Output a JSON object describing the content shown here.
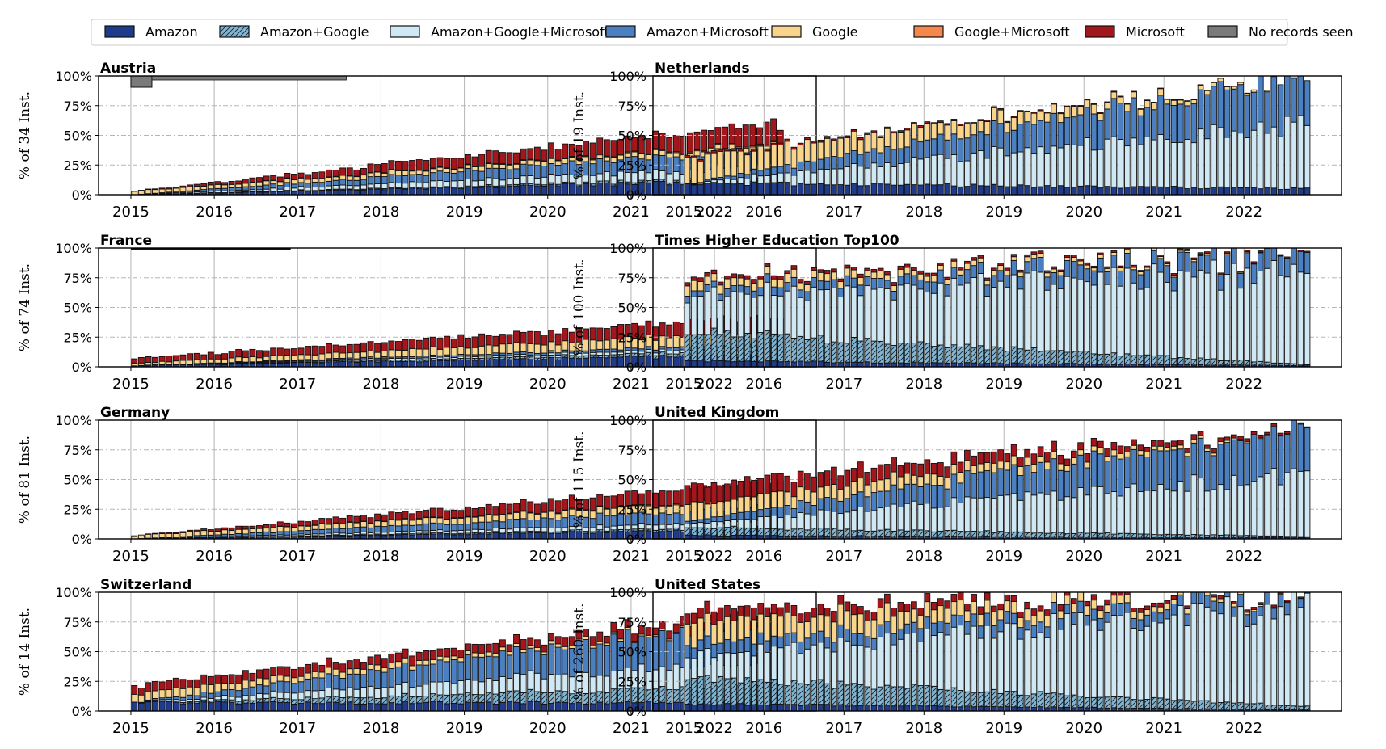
{
  "legend": {
    "placement": "top",
    "items": [
      {
        "label": "Amazon",
        "color": "#1f3b8c",
        "hatch": false
      },
      {
        "label": "Amazon+Google",
        "color": "#7fb6d6",
        "hatch": true
      },
      {
        "label": "Amazon+Google+Microsoft",
        "color": "#cfe8f3",
        "hatch": false
      },
      {
        "label": "Amazon+Microsoft",
        "color": "#4a7fc1",
        "hatch": false
      },
      {
        "label": "Google",
        "color": "#f9d48b",
        "hatch": false
      },
      {
        "label": "Google+Microsoft",
        "color": "#f4874b",
        "hatch": false
      },
      {
        "label": "Microsoft",
        "color": "#a3161b",
        "hatch": false
      },
      {
        "label": "No records seen",
        "color": "#7a7a7a",
        "hatch": false
      }
    ]
  },
  "x_ticks": [
    "2015",
    "2016",
    "2017",
    "2018",
    "2019",
    "2020",
    "2021",
    "2022"
  ],
  "y_ticks": [
    "0%",
    "25%",
    "50%",
    "75%",
    "100%"
  ],
  "chart_data": [
    {
      "type": "bar",
      "stacked": true,
      "title": "Austria",
      "ylabel": "% of 34 Inst.",
      "ylim": [
        0,
        100
      ],
      "grid": true,
      "x_range": [
        "2015-01",
        "2022-10"
      ],
      "nodata_color": "#7a7a7a",
      "nodata_level": 100,
      "nodata_end": "2017-08",
      "series": [
        {
          "name": "Amazon",
          "start": 0,
          "end": 12
        },
        {
          "name": "Amazon+Google",
          "start": 0,
          "end": 2
        },
        {
          "name": "Amazon+Google+Microsoft",
          "start": 0,
          "end": 10
        },
        {
          "name": "Amazon+Microsoft",
          "start": 0,
          "end": 15
        },
        {
          "name": "Google",
          "start": 3,
          "end": 4
        },
        {
          "name": "Google+Microsoft",
          "start": 0,
          "end": 1
        },
        {
          "name": "Microsoft",
          "start": 0,
          "end": 17
        }
      ]
    },
    {
      "type": "bar",
      "stacked": true,
      "title": "Netherlands",
      "ylabel": "% of 19 Inst.",
      "ylim": [
        0,
        100
      ],
      "grid": true,
      "x_range": [
        "2015-01",
        "2022-10"
      ],
      "series": [
        {
          "name": "Amazon",
          "start": 10,
          "end": 5
        },
        {
          "name": "Amazon+Google",
          "start": 0,
          "end": 0
        },
        {
          "name": "Amazon+Google+Microsoft",
          "start": 0,
          "end": 55
        },
        {
          "name": "Amazon+Microsoft",
          "start": 0,
          "end": 40
        },
        {
          "name": "Google",
          "start": 20,
          "end": 0
        },
        {
          "name": "Google+Microsoft",
          "start": 0,
          "end": 0
        },
        {
          "name": "Microsoft",
          "start": 2,
          "end": 0
        }
      ]
    },
    {
      "type": "bar",
      "stacked": true,
      "title": "France",
      "ylabel": "% of 74 Inst.",
      "ylim": [
        0,
        100
      ],
      "grid": true,
      "x_range": [
        "2015-01",
        "2022-10"
      ],
      "nodata_color": "#7a7a7a",
      "nodata_level": 100,
      "nodata_end": "2016-12",
      "series": [
        {
          "name": "Amazon",
          "start": 1,
          "end": 10
        },
        {
          "name": "Amazon+Google",
          "start": 0,
          "end": 3
        },
        {
          "name": "Amazon+Google+Microsoft",
          "start": 0,
          "end": 3
        },
        {
          "name": "Amazon+Microsoft",
          "start": 0,
          "end": 3
        },
        {
          "name": "Google",
          "start": 2,
          "end": 11
        },
        {
          "name": "Google+Microsoft",
          "start": 0,
          "end": 0
        },
        {
          "name": "Microsoft",
          "start": 4,
          "end": 13
        }
      ]
    },
    {
      "type": "bar",
      "stacked": true,
      "title": "Times Higher Education Top100",
      "ylabel": "% of 100 Inst.",
      "ylim": [
        0,
        100
      ],
      "grid": true,
      "x_range": [
        "2015-01",
        "2022-10"
      ],
      "series": [
        {
          "name": "Amazon",
          "start": 5,
          "end": 1
        },
        {
          "name": "Amazon+Google",
          "start": 25,
          "end": 1
        },
        {
          "name": "Amazon+Google+Microsoft",
          "start": 30,
          "end": 78
        },
        {
          "name": "Amazon+Microsoft",
          "start": 5,
          "end": 16
        },
        {
          "name": "Google",
          "start": 8,
          "end": 0
        },
        {
          "name": "Google+Microsoft",
          "start": 0,
          "end": 0
        },
        {
          "name": "Microsoft",
          "start": 3,
          "end": 1
        }
      ]
    },
    {
      "type": "bar",
      "stacked": true,
      "title": "Germany",
      "ylabel": "% of 81 Inst.",
      "ylim": [
        0,
        100
      ],
      "grid": true,
      "x_range": [
        "2015-01",
        "2022-10"
      ],
      "series": [
        {
          "name": "Amazon",
          "start": 0,
          "end": 8
        },
        {
          "name": "Amazon+Google",
          "start": 0,
          "end": 2
        },
        {
          "name": "Amazon+Google+Microsoft",
          "start": 0,
          "end": 5
        },
        {
          "name": "Amazon+Microsoft",
          "start": 0,
          "end": 12
        },
        {
          "name": "Google",
          "start": 3,
          "end": 7
        },
        {
          "name": "Google+Microsoft",
          "start": 0,
          "end": 1
        },
        {
          "name": "Microsoft",
          "start": 0,
          "end": 14
        }
      ]
    },
    {
      "type": "bar",
      "stacked": true,
      "title": "United Kingdom",
      "ylabel": "% of 115 Inst.",
      "ylim": [
        0,
        100
      ],
      "grid": true,
      "x_range": [
        "2015-01",
        "2022-10"
      ],
      "series": [
        {
          "name": "Amazon",
          "start": 3,
          "end": 1
        },
        {
          "name": "Amazon+Google",
          "start": 7,
          "end": 1
        },
        {
          "name": "Amazon+Google+Microsoft",
          "start": 3,
          "end": 52
        },
        {
          "name": "Amazon+Microsoft",
          "start": 2,
          "end": 39
        },
        {
          "name": "Google",
          "start": 14,
          "end": 0
        },
        {
          "name": "Google+Microsoft",
          "start": 0,
          "end": 0
        },
        {
          "name": "Microsoft",
          "start": 16,
          "end": 1
        }
      ]
    },
    {
      "type": "bar",
      "stacked": true,
      "title": "Switzerland",
      "ylabel": "% of 14 Inst.",
      "ylim": [
        0,
        100
      ],
      "grid": true,
      "x_range": [
        "2015-01",
        "2022-10"
      ],
      "series": [
        {
          "name": "Amazon",
          "start": 7,
          "end": 7
        },
        {
          "name": "Amazon+Google",
          "start": 0,
          "end": 14
        },
        {
          "name": "Amazon+Google+Microsoft",
          "start": 0,
          "end": 22
        },
        {
          "name": "Amazon+Microsoft",
          "start": 0,
          "end": 36
        },
        {
          "name": "Google",
          "start": 7,
          "end": 0
        },
        {
          "name": "Google+Microsoft",
          "start": 0,
          "end": 0
        },
        {
          "name": "Microsoft",
          "start": 7,
          "end": 7
        }
      ]
    },
    {
      "type": "bar",
      "stacked": true,
      "title": "United States",
      "ylabel": "% of 260 Inst.",
      "ylim": [
        0,
        100
      ],
      "grid": true,
      "x_range": [
        "2015-01",
        "2022-10"
      ],
      "series": [
        {
          "name": "Amazon",
          "start": 6,
          "end": 1
        },
        {
          "name": "Amazon+Google",
          "start": 22,
          "end": 3
        },
        {
          "name": "Amazon+Google+Microsoft",
          "start": 18,
          "end": 85
        },
        {
          "name": "Amazon+Microsoft",
          "start": 10,
          "end": 9
        },
        {
          "name": "Google",
          "start": 20,
          "end": 0
        },
        {
          "name": "Google+Microsoft",
          "start": 0,
          "end": 0
        },
        {
          "name": "Microsoft",
          "start": 10,
          "end": 1
        }
      ]
    }
  ]
}
